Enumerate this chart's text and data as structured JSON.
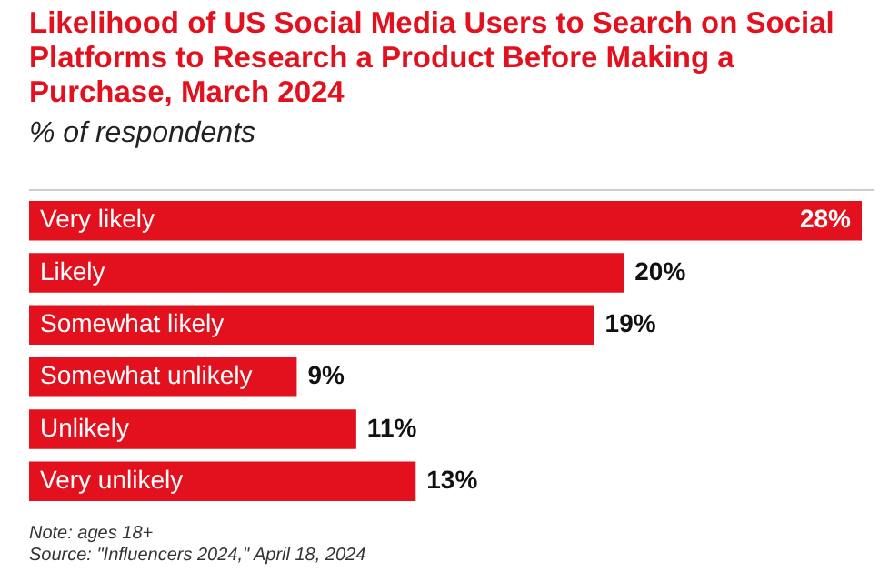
{
  "chart_data": {
    "type": "bar",
    "orientation": "horizontal",
    "title": "Likelihood of US Social Media Users to Search on Social Platforms to Research a Product Before Making a Purchase, March 2024",
    "subtitle": "% of respondents",
    "categories": [
      "Very likely",
      "Likely",
      "Somewhat likely",
      "Somewhat unlikely",
      "Unlikely",
      "Very unlikely"
    ],
    "values": [
      28,
      20,
      19,
      9,
      11,
      13
    ],
    "color": "#e3101d",
    "value_labels": [
      "28%",
      "20%",
      "19%",
      "9%",
      "11%",
      "13%"
    ],
    "annotations": [
      "Note: ages 18+",
      "Source: \"Influencers 2024,\" April 18, 2024"
    ]
  }
}
